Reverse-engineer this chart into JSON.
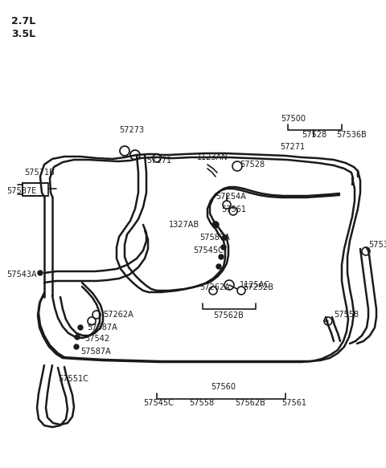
{
  "bg_color": "#ffffff",
  "line_color": "#1a1a1a",
  "fig_width": 4.8,
  "fig_height": 5.83,
  "dpi": 100,
  "title1": "2.7L",
  "title2": "3.5L",
  "xlim": [
    0,
    480
  ],
  "ylim": [
    0,
    583
  ]
}
